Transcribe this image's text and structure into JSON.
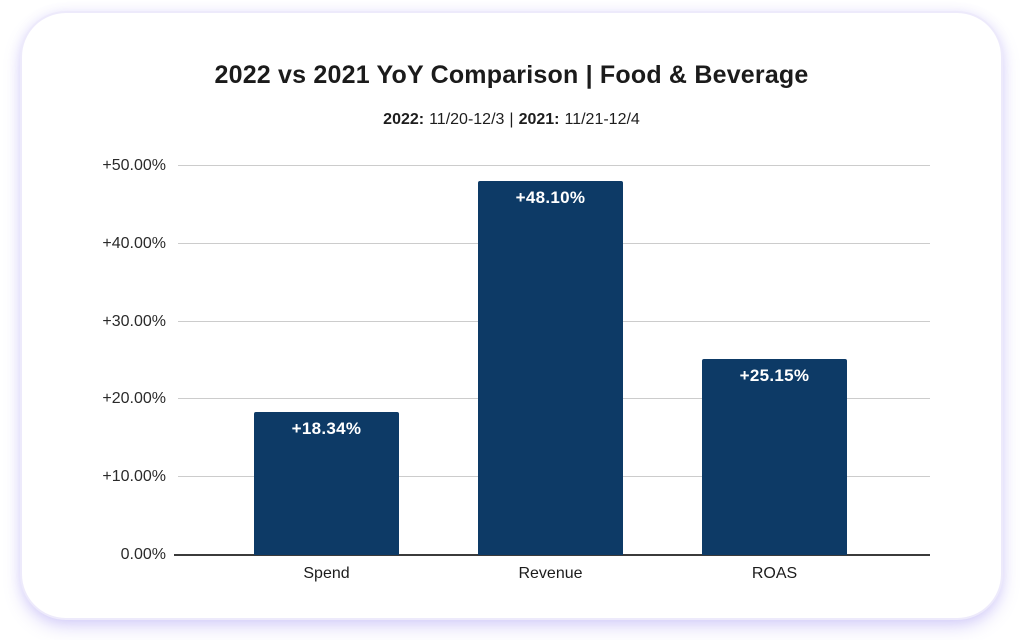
{
  "chart": {
    "title": "2022 vs 2021 YoY Comparison | Food & Beverage",
    "subtitle": {
      "year1_label": "2022:",
      "year1_range": "11/20-12/3",
      "separator": "|",
      "year2_label": "2021:",
      "year2_range": "11/21-12/4"
    }
  },
  "chart_data": {
    "type": "bar",
    "title": "2022 vs 2021 YoY Comparison | Food & Beverage",
    "subtitle": "2022: 11/20-12/3 | 2021: 11/21-12/4",
    "categories": [
      "Spend",
      "Revenue",
      "ROAS"
    ],
    "values": [
      18.34,
      48.1,
      25.15
    ],
    "value_labels": [
      "+18.34%",
      "+48.10%",
      "+25.15%"
    ],
    "xlabel": "",
    "ylabel": "",
    "ylim": [
      0,
      50
    ],
    "yticks": [
      0,
      10,
      20,
      30,
      40,
      50
    ],
    "ytick_labels": [
      "0.00%",
      "+10.00%",
      "+20.00%",
      "+30.00%",
      "+40.00%",
      "+50.00%"
    ],
    "grid": true,
    "legend": false
  },
  "colors": {
    "bar": "#0d3a66",
    "bar_label": "#ffffff",
    "gridline": "#cccccc",
    "axis": "#3b3b3b",
    "card_background": "#ffffff",
    "page_glow": "#d9d2f6",
    "title_text": "#1b1b1b"
  }
}
